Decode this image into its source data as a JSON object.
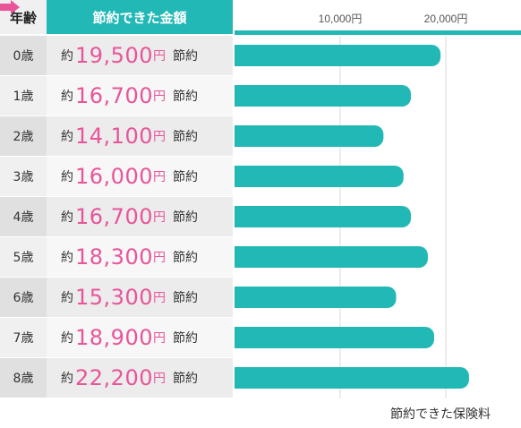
{
  "header": {
    "age_label": "年齢",
    "amount_label": "節約できた金額"
  },
  "rows": [
    {
      "age": "0歳",
      "prefix": "約",
      "amount": "19,500",
      "unit": "円",
      "suffix": "節約"
    },
    {
      "age": "1歳",
      "prefix": "約",
      "amount": "16,700",
      "unit": "円",
      "suffix": "節約"
    },
    {
      "age": "2歳",
      "prefix": "約",
      "amount": "14,100",
      "unit": "円",
      "suffix": "節約"
    },
    {
      "age": "3歳",
      "prefix": "約",
      "amount": "16,000",
      "unit": "円",
      "suffix": "節約"
    },
    {
      "age": "4歳",
      "prefix": "約",
      "amount": "16,700",
      "unit": "円",
      "suffix": "節約"
    },
    {
      "age": "5歳",
      "prefix": "約",
      "amount": "18,300",
      "unit": "円",
      "suffix": "節約"
    },
    {
      "age": "6歳",
      "prefix": "約",
      "amount": "15,300",
      "unit": "円",
      "suffix": "節約"
    },
    {
      "age": "7歳",
      "prefix": "約",
      "amount": "18,900",
      "unit": "円",
      "suffix": "節約"
    },
    {
      "age": "8歳",
      "prefix": "約",
      "amount": "22,200",
      "unit": "円",
      "suffix": "節約"
    }
  ],
  "footer": {
    "label": "節約できた保険料"
  },
  "colors": {
    "bar": "#22b8b6",
    "accent": "#e8559a",
    "arrow": "#e8559a"
  },
  "chart_data": {
    "type": "bar",
    "orientation": "horizontal",
    "categories": [
      "0歳",
      "1歳",
      "2歳",
      "3歳",
      "4歳",
      "5歳",
      "6歳",
      "7歳",
      "8歳"
    ],
    "values": [
      19500,
      16700,
      14100,
      16000,
      16700,
      18300,
      15300,
      18900,
      22200
    ],
    "xticks": [
      10000,
      20000
    ],
    "xtick_labels": [
      "10,000円",
      "20,000円"
    ],
    "xlim": [
      0,
      25000
    ],
    "xlabel": "節約できた保険料",
    "grid": true
  }
}
